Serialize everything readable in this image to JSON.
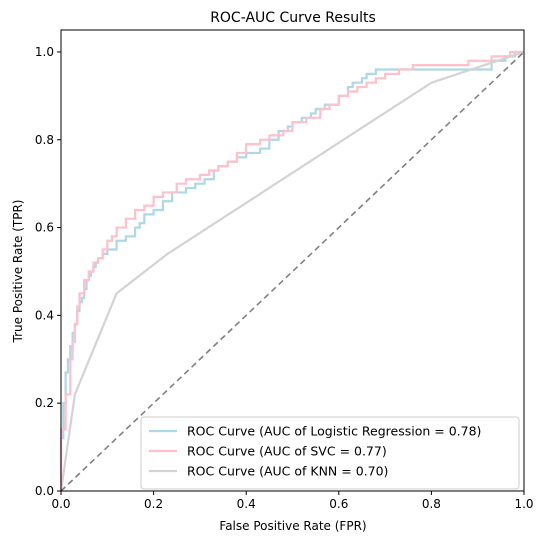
{
  "chart_data": {
    "type": "line",
    "title": "ROC-AUC Curve Results",
    "xlabel": "False Positive Rate (FPR)",
    "ylabel": "True Positive Rate (TPR)",
    "xlim": [
      0.0,
      1.0
    ],
    "ylim": [
      0.0,
      1.05
    ],
    "xticks": [
      "0.0",
      "0.2",
      "0.4",
      "0.6",
      "0.8",
      "1.0"
    ],
    "yticks": [
      "0.0",
      "0.2",
      "0.4",
      "0.6",
      "0.8",
      "1.0"
    ],
    "legend_position": "lower-right",
    "series": [
      {
        "name": "ROC Curve (AUC of Logistic Regression = 0.78)",
        "color": "#add8e6",
        "x": [
          0.0,
          0.0,
          0.005,
          0.005,
          0.01,
          0.01,
          0.015,
          0.015,
          0.02,
          0.02,
          0.025,
          0.025,
          0.03,
          0.03,
          0.035,
          0.035,
          0.04,
          0.04,
          0.045,
          0.045,
          0.05,
          0.05,
          0.055,
          0.055,
          0.06,
          0.06,
          0.065,
          0.065,
          0.07,
          0.07,
          0.075,
          0.075,
          0.08,
          0.08,
          0.09,
          0.09,
          0.1,
          0.1,
          0.12,
          0.12,
          0.14,
          0.14,
          0.16,
          0.16,
          0.17,
          0.17,
          0.18,
          0.18,
          0.2,
          0.2,
          0.22,
          0.22,
          0.24,
          0.24,
          0.27,
          0.27,
          0.29,
          0.29,
          0.31,
          0.31,
          0.33,
          0.33,
          0.34,
          0.34,
          0.36,
          0.36,
          0.38,
          0.38,
          0.4,
          0.4,
          0.43,
          0.43,
          0.45,
          0.45,
          0.47,
          0.47,
          0.49,
          0.49,
          0.5,
          0.5,
          0.52,
          0.52,
          0.54,
          0.54,
          0.55,
          0.55,
          0.57,
          0.57,
          0.6,
          0.6,
          0.62,
          0.62,
          0.63,
          0.63,
          0.65,
          0.65,
          0.66,
          0.66,
          0.68,
          0.68,
          0.7,
          0.7,
          0.72,
          0.72,
          0.75,
          0.75,
          0.78,
          0.78,
          0.8,
          0.8,
          0.83,
          0.83,
          0.86,
          0.86,
          0.9,
          0.9,
          0.93,
          0.93,
          0.96,
          0.96,
          0.98,
          0.98,
          1.0
        ],
        "y": [
          0.0,
          0.12,
          0.12,
          0.2,
          0.2,
          0.27,
          0.27,
          0.3,
          0.3,
          0.33,
          0.33,
          0.36,
          0.36,
          0.38,
          0.38,
          0.41,
          0.41,
          0.43,
          0.43,
          0.44,
          0.44,
          0.46,
          0.46,
          0.48,
          0.48,
          0.49,
          0.49,
          0.5,
          0.5,
          0.51,
          0.51,
          0.52,
          0.52,
          0.53,
          0.53,
          0.54,
          0.54,
          0.55,
          0.55,
          0.57,
          0.57,
          0.58,
          0.58,
          0.6,
          0.6,
          0.61,
          0.61,
          0.63,
          0.63,
          0.64,
          0.64,
          0.66,
          0.66,
          0.68,
          0.68,
          0.69,
          0.69,
          0.7,
          0.7,
          0.71,
          0.71,
          0.73,
          0.73,
          0.74,
          0.74,
          0.75,
          0.75,
          0.76,
          0.76,
          0.77,
          0.77,
          0.78,
          0.78,
          0.8,
          0.8,
          0.82,
          0.82,
          0.83,
          0.83,
          0.84,
          0.84,
          0.85,
          0.85,
          0.86,
          0.86,
          0.87,
          0.87,
          0.88,
          0.88,
          0.9,
          0.9,
          0.92,
          0.92,
          0.93,
          0.93,
          0.94,
          0.94,
          0.95,
          0.95,
          0.96,
          0.96,
          0.96,
          0.96,
          0.96,
          0.96,
          0.96,
          0.96,
          0.96,
          0.96,
          0.96,
          0.96,
          0.96,
          0.96,
          0.96,
          0.96,
          0.96,
          0.96,
          0.98,
          0.98,
          0.99,
          0.99,
          1.0,
          1.0
        ]
      },
      {
        "name": "ROC Curve (AUC of SVC = 0.77)",
        "color": "#ffc0cb",
        "x": [
          0.0,
          0.0,
          0.01,
          0.01,
          0.02,
          0.02,
          0.025,
          0.025,
          0.03,
          0.03,
          0.035,
          0.035,
          0.04,
          0.04,
          0.05,
          0.05,
          0.06,
          0.06,
          0.07,
          0.07,
          0.08,
          0.08,
          0.09,
          0.09,
          0.1,
          0.1,
          0.11,
          0.11,
          0.12,
          0.12,
          0.14,
          0.14,
          0.16,
          0.16,
          0.18,
          0.18,
          0.2,
          0.2,
          0.22,
          0.22,
          0.25,
          0.25,
          0.27,
          0.27,
          0.3,
          0.3,
          0.32,
          0.32,
          0.34,
          0.34,
          0.36,
          0.36,
          0.38,
          0.38,
          0.4,
          0.4,
          0.43,
          0.43,
          0.45,
          0.45,
          0.48,
          0.48,
          0.5,
          0.5,
          0.53,
          0.53,
          0.56,
          0.56,
          0.58,
          0.58,
          0.6,
          0.6,
          0.62,
          0.62,
          0.64,
          0.64,
          0.66,
          0.66,
          0.68,
          0.68,
          0.7,
          0.7,
          0.73,
          0.73,
          0.76,
          0.76,
          0.8,
          0.8,
          0.84,
          0.84,
          0.88,
          0.88,
          0.93,
          0.93,
          0.97,
          0.97,
          1.0
        ],
        "y": [
          0.0,
          0.14,
          0.14,
          0.22,
          0.22,
          0.3,
          0.3,
          0.34,
          0.34,
          0.38,
          0.38,
          0.42,
          0.42,
          0.45,
          0.45,
          0.48,
          0.48,
          0.5,
          0.5,
          0.52,
          0.52,
          0.53,
          0.53,
          0.55,
          0.55,
          0.57,
          0.57,
          0.58,
          0.58,
          0.6,
          0.6,
          0.62,
          0.62,
          0.64,
          0.64,
          0.65,
          0.65,
          0.67,
          0.67,
          0.68,
          0.68,
          0.7,
          0.7,
          0.71,
          0.71,
          0.72,
          0.72,
          0.73,
          0.73,
          0.74,
          0.74,
          0.75,
          0.75,
          0.77,
          0.77,
          0.79,
          0.79,
          0.8,
          0.8,
          0.81,
          0.81,
          0.82,
          0.82,
          0.84,
          0.84,
          0.85,
          0.85,
          0.87,
          0.87,
          0.88,
          0.88,
          0.9,
          0.9,
          0.91,
          0.91,
          0.92,
          0.92,
          0.93,
          0.93,
          0.94,
          0.94,
          0.95,
          0.95,
          0.96,
          0.96,
          0.97,
          0.97,
          0.97,
          0.97,
          0.97,
          0.97,
          0.98,
          0.98,
          0.99,
          0.99,
          1.0,
          1.0
        ]
      },
      {
        "name": "ROC Curve (AUC of KNN = 0.70)",
        "color": "#d3d3d3",
        "x": [
          0.0,
          0.03,
          0.12,
          0.23,
          0.8,
          1.0
        ],
        "y": [
          0.0,
          0.22,
          0.45,
          0.54,
          0.93,
          1.0
        ]
      },
      {
        "name": "",
        "color": "#808080",
        "dashed": true,
        "x": [
          0.0,
          1.0
        ],
        "y": [
          0.0,
          1.0
        ]
      }
    ]
  }
}
